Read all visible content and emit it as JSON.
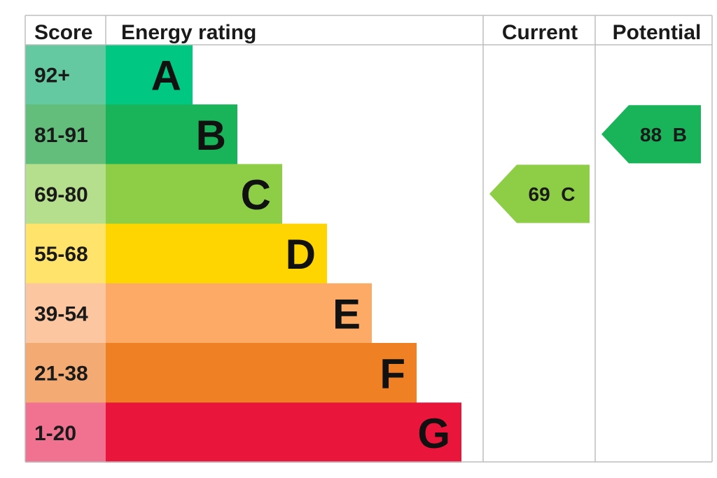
{
  "headers": {
    "score": "Score",
    "energy_rating": "Energy rating",
    "current": "Current",
    "potential": "Potential"
  },
  "chart_data": {
    "type": "bar",
    "categories": [
      "A",
      "B",
      "C",
      "D",
      "E",
      "F",
      "G"
    ],
    "bands": [
      {
        "letter": "A",
        "range": "92+",
        "score_color": "#64c9a0",
        "bar_color": "#00c781"
      },
      {
        "letter": "B",
        "range": "81-91",
        "score_color": "#63be7c",
        "bar_color": "#19b459"
      },
      {
        "letter": "C",
        "range": "69-80",
        "score_color": "#b5df8c",
        "bar_color": "#8dce46"
      },
      {
        "letter": "D",
        "range": "55-68",
        "score_color": "#ffe36a",
        "bar_color": "#ffd500"
      },
      {
        "letter": "E",
        "range": "39-54",
        "score_color": "#fcc6a0",
        "bar_color": "#fcaa65"
      },
      {
        "letter": "F",
        "range": "21-38",
        "score_color": "#f3ab73",
        "bar_color": "#ef8023"
      },
      {
        "letter": "G",
        "range": "1-20",
        "score_color": "#f17290",
        "bar_color": "#e9153b"
      }
    ],
    "current": {
      "value": 69,
      "band": "C",
      "label": "69  C",
      "color": "#8dce46"
    },
    "potential": {
      "value": 88,
      "band": "B",
      "label": "88  B",
      "color": "#19b459"
    }
  }
}
